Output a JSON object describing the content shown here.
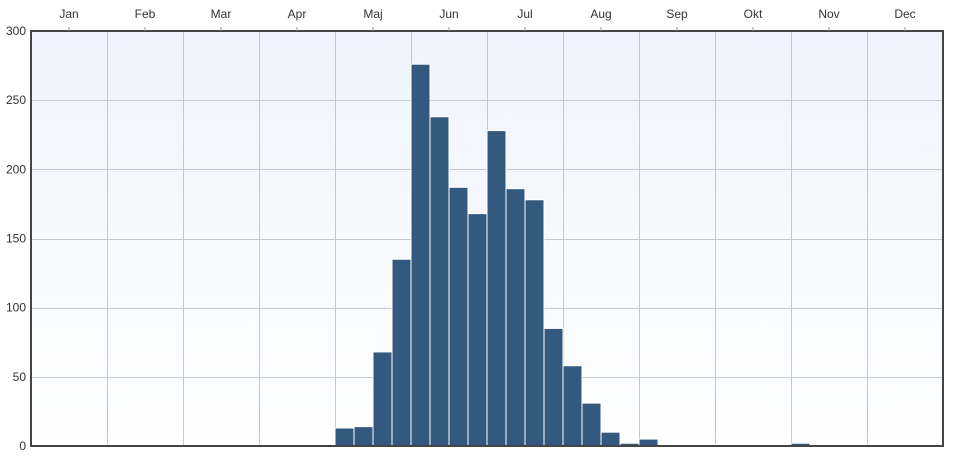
{
  "chart_data": {
    "type": "bar",
    "title": "",
    "xlabel": "",
    "ylabel": "",
    "months": [
      "Jan",
      "Feb",
      "Mar",
      "Apr",
      "Maj",
      "Jun",
      "Jul",
      "Aug",
      "Sep",
      "Okt",
      "Nov",
      "Dec"
    ],
    "bins_per_month": 4,
    "ylim": [
      0,
      300
    ],
    "yticks": [
      0,
      50,
      100,
      150,
      200,
      250,
      300
    ],
    "grid": true,
    "values": [
      0,
      0,
      0,
      0,
      0,
      0,
      0,
      0,
      0,
      0,
      0,
      0,
      0,
      0,
      0,
      0,
      13,
      14,
      68,
      135,
      276,
      238,
      187,
      168,
      228,
      186,
      178,
      85,
      58,
      31,
      10,
      2,
      5,
      0,
      0,
      0,
      1,
      0,
      0,
      0,
      2,
      0,
      0,
      0,
      0,
      0,
      0,
      0
    ],
    "colors": {
      "bar": "#34597f",
      "bar_outline": "#ffffff",
      "plot_bg_top": "#eef3fd",
      "plot_bg_bottom": "#ffffff",
      "axis": "#444444"
    }
  }
}
